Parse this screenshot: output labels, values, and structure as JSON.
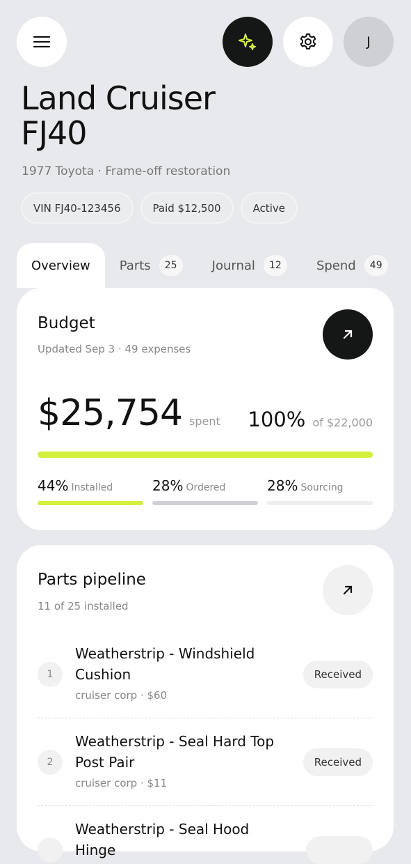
{
  "header": {
    "avatar_initial": "J"
  },
  "vehicle": {
    "title_lines": [
      "Land Cruiser",
      "FJ40"
    ],
    "subtitle": "1977 Toyota · Frame-off restoration",
    "chips": [
      "VIN FJ40-123456",
      "Paid $12,500",
      "Active"
    ]
  },
  "tabs": [
    {
      "label": "Overview"
    },
    {
      "label": "Parts",
      "count": "25"
    },
    {
      "label": "Journal",
      "count": "12"
    },
    {
      "label": "Spend",
      "count": "49"
    }
  ],
  "budget": {
    "title": "Budget",
    "updated": "Updated Sep 3 · 49 expenses",
    "spent_amount": "$25,754",
    "spent_label": "spent",
    "progress": {
      "value": 100,
      "label": "100%"
    },
    "of_total": "of $22,000",
    "breakdown": [
      {
        "percent": "44%",
        "label": "Installed"
      },
      {
        "percent": "28%",
        "label": "Ordered"
      },
      {
        "percent": "28%",
        "label": "Sourcing"
      }
    ]
  },
  "pipeline": {
    "title": "Parts pipeline",
    "summary": "11 of 25 installed",
    "items": [
      {
        "number": "1",
        "name": "Weatherstrip - Windshield Cushion",
        "meta": "cruiser corp · $60",
        "status": "Received"
      },
      {
        "number": "2",
        "name": "Weatherstrip - Seal Hard Top Post Pair",
        "meta": "cruiser corp · $11",
        "status": "Received"
      },
      {
        "name": "Weatherstrip - Seal Hood Hinge"
      }
    ]
  }
}
